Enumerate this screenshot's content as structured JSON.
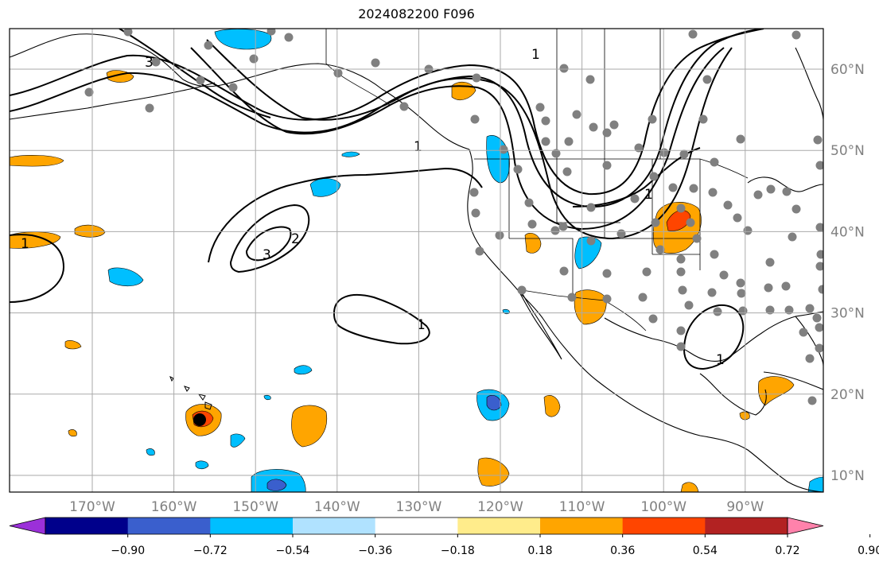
{
  "title": "2024082200 F096",
  "map": {
    "lon_range": [
      -180,
      -80
    ],
    "lat_range": [
      8,
      65
    ],
    "lon_ticks": [
      "170°W",
      "160°W",
      "150°W",
      "140°W",
      "130°W",
      "120°W",
      "110°W",
      "100°W",
      "90°W"
    ],
    "lat_ticks": [
      "10°N",
      "20°N",
      "30°N",
      "40°N",
      "50°N",
      "60°N"
    ],
    "contour_labels": [
      "1",
      "1",
      "1",
      "1",
      "1",
      "1",
      "2",
      "3",
      "3"
    ]
  },
  "colorbar": {
    "tick_labels": [
      "−0.90",
      "−0.72",
      "−0.54",
      "−0.36",
      "−0.18",
      "0.18",
      "0.36",
      "0.54",
      "0.72",
      "0.90"
    ],
    "colors": [
      "#9b30d9",
      "#00008b",
      "#3a5fcd",
      "#00bfff",
      "#b0e2ff",
      "#ffffff",
      "#ffec8b",
      "#ffa500",
      "#ff4500",
      "#b22222",
      "#ff82ab"
    ]
  }
}
